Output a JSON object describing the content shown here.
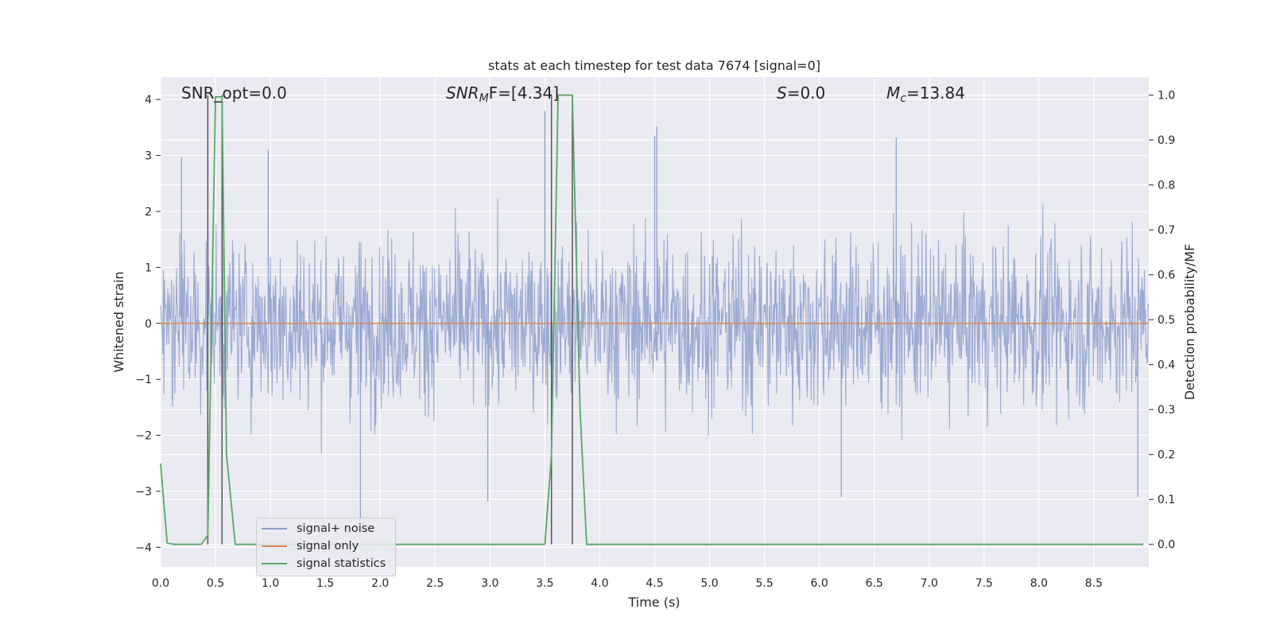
{
  "chart_data": {
    "type": "line",
    "title": "stats at each timestep for test data 7674 [signal=0]",
    "xlabel": "Time (s)",
    "ylabel_left": "Whitened strain",
    "ylabel_right": "Detection probability/MF",
    "xlim": [
      0,
      9
    ],
    "ylim_left": [
      -4.35,
      4.4
    ],
    "ylim_right": [
      -0.05,
      1.04
    ],
    "x_ticks": [
      "0.0",
      "0.5",
      "1.0",
      "1.5",
      "2.0",
      "2.5",
      "3.0",
      "3.5",
      "4.0",
      "4.5",
      "5.0",
      "5.5",
      "6.0",
      "6.5",
      "7.0",
      "7.5",
      "8.0",
      "8.5"
    ],
    "y_ticks_left": [
      "−4",
      "−3",
      "−2",
      "−1",
      "0",
      "1",
      "2",
      "3",
      "4"
    ],
    "y_ticks_right": [
      "0.0",
      "0.1",
      "0.2",
      "0.3",
      "0.4",
      "0.5",
      "0.6",
      "0.7",
      "0.8",
      "0.9",
      "1.0"
    ],
    "grid": true,
    "legend_position": "lower-left",
    "annotations": {
      "snr_opt": "SNR_opt=0.0",
      "snr_mf_main": "SNR",
      "snr_mf_sub": "M",
      "snr_mf_rest": "F=[4.34]",
      "s_main": "S",
      "s_rest": "=0.0",
      "mc_main": "M",
      "mc_sub": "c",
      "mc_rest": "=13.84"
    },
    "series": [
      {
        "name": "signal+ noise",
        "color": "#8c9fcb",
        "description_level": "whitened strain noise, approximately within [-2.3, 2.3] with spikes up to about 3.5",
        "spikes": [
          {
            "x": 0.19,
            "y": 2.97
          },
          {
            "x": 0.98,
            "y": 3.1
          },
          {
            "x": 3.5,
            "y": 3.8
          },
          {
            "x": 4.52,
            "y": 3.52
          },
          {
            "x": 4.5,
            "y": 3.35
          },
          {
            "x": 6.7,
            "y": 3.32
          },
          {
            "x": 1.82,
            "y": -3.6
          },
          {
            "x": 2.98,
            "y": -3.18
          },
          {
            "x": 6.2,
            "y": -3.1
          },
          {
            "x": 8.9,
            "y": -3.1
          }
        ]
      },
      {
        "name": "signal only",
        "color": "#dd8452",
        "x": [
          0,
          9
        ],
        "y": [
          0,
          0
        ]
      },
      {
        "name": "signal statistics",
        "color": "#55a868",
        "x": [
          0,
          0.06,
          0.12,
          0.25,
          0.37,
          0.43,
          0.5,
          0.56,
          0.6,
          0.68,
          3.5,
          3.56,
          3.62,
          3.75,
          3.82,
          3.88,
          8.95
        ],
        "y": [
          0.18,
          0.003,
          0.0,
          0.0,
          0.0,
          0.02,
          0.996,
          0.996,
          0.2,
          0.0,
          0.0,
          0.2,
          1.0,
          1.0,
          0.3,
          0.0,
          0.0
        ]
      }
    ],
    "vertical_markers": {
      "color": "#555555",
      "x": [
        0.43,
        0.56,
        3.56,
        3.75
      ],
      "y_range_right": [
        0.0,
        1.0
      ]
    }
  },
  "legend": {
    "items": [
      {
        "label": "signal+ noise",
        "color": "#8c9fcb"
      },
      {
        "label": "signal only",
        "color": "#dd8452"
      },
      {
        "label": "signal statistics",
        "color": "#55a868"
      }
    ]
  }
}
